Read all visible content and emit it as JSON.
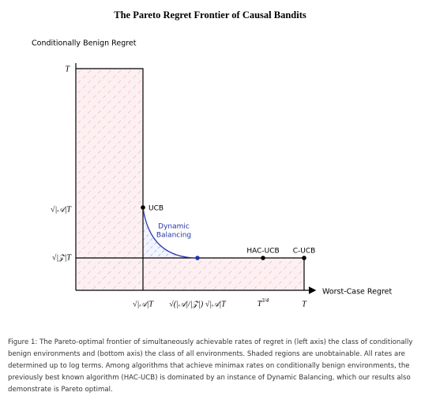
{
  "figure": {
    "title": "The Pareto Regret Frontier of Causal Bandits",
    "y_axis_label": "Conditionally Benign Regret",
    "x_axis_label": "Worst-Case Regret",
    "y_ticks": [
      "T",
      "√|𝒜|T",
      "√|𝒵|T"
    ],
    "x_ticks": [
      "√|𝒜|T",
      "√(|𝒜|/|𝒵|) √|𝒜|T",
      {
        "base": "T",
        "sup": "3/4"
      },
      "T"
    ],
    "points": [
      "UCB",
      "HAC-UCB",
      "C-UCB"
    ],
    "curve_label": [
      "Dynamic",
      "Balancing"
    ]
  },
  "caption": "Figure 1: The Pareto-optimal frontier of simultaneously achievable rates of regret in (left axis) the class of conditionally benign environments and (bottom axis) the class of all environments. Shaded regions are unobtainable. All rates are determined up to log terms. Among algorithms that achieve minimax rates on conditionally benign environments, the previously best known algorithm (HAC-UCB) is dominated by an instance of Dynamic Balancing, which our results also demonstrate is Pareto optimal."
}
